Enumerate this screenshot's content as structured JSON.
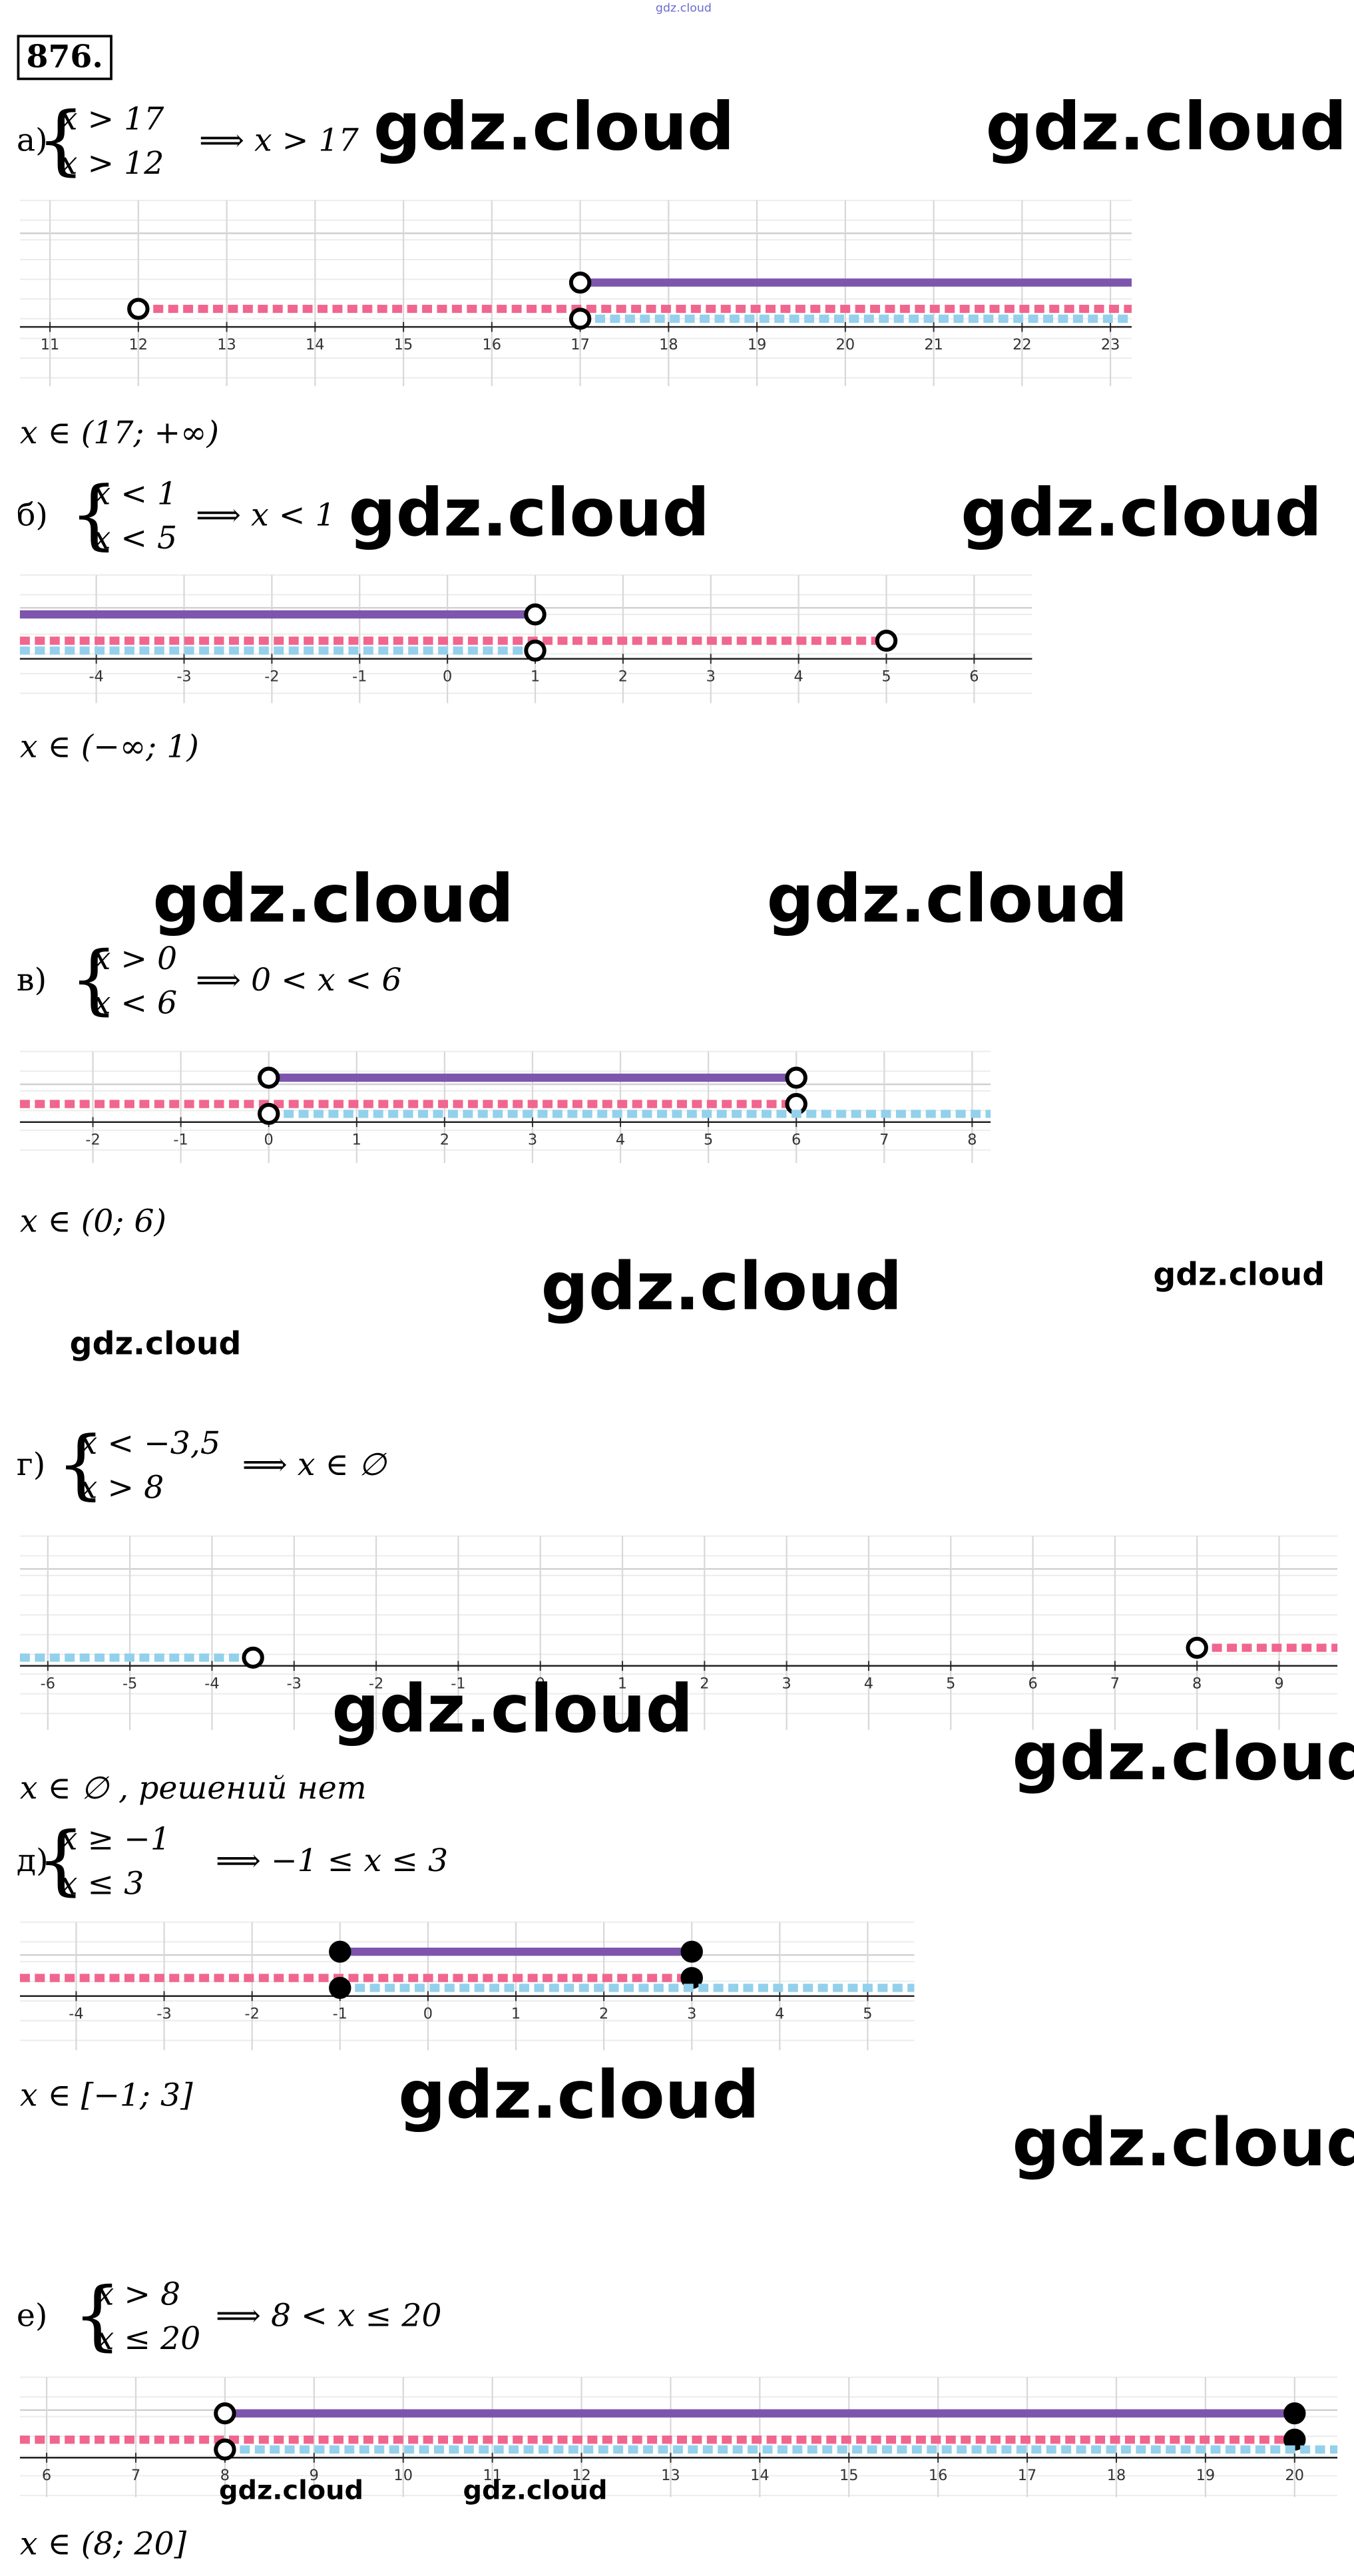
{
  "problem": "876.",
  "header_watermark": "gdz.cloud",
  "parts": [
    {
      "label": "а)",
      "system": [
        "x > 17",
        "x > 12"
      ],
      "result": "⟹ x > 17",
      "answer": "x ∈ (17; +∞)",
      "xlim": [
        10.66,
        23.24
      ],
      "xticks": [
        11,
        12,
        13,
        14,
        15,
        16,
        17,
        18,
        19,
        20,
        21,
        22,
        23
      ],
      "segments": [
        {
          "color": "#7d55ad",
          "style": "solid",
          "from": 17,
          "to": null,
          "from_point": "open",
          "to_point": null
        },
        {
          "color": "#f0668f",
          "style": "dashed",
          "from": 12,
          "to": null,
          "from_point": "open",
          "to_point": null
        },
        {
          "color": "#93d0ec",
          "style": "dashed",
          "from": 17,
          "to": null,
          "from_point": "open",
          "to_point": null
        }
      ]
    },
    {
      "label": "б)",
      "system": [
        "x < 1",
        "x < 5"
      ],
      "result": "⟹ x < 1",
      "answer": "x ∈ (−∞; 1)",
      "xlim": [
        -4.87,
        6.66
      ],
      "xticks": [
        -4,
        -3,
        -2,
        -1,
        0,
        1,
        2,
        3,
        4,
        5,
        6
      ],
      "segments": [
        {
          "color": "#7d55ad",
          "style": "solid",
          "from": null,
          "to": 1,
          "from_point": null,
          "to_point": "open"
        },
        {
          "color": "#f0668f",
          "style": "dashed",
          "from": null,
          "to": 5,
          "from_point": null,
          "to_point": "open"
        },
        {
          "color": "#93d0ec",
          "style": "dashed",
          "from": null,
          "to": 1,
          "from_point": null,
          "to_point": "open"
        }
      ]
    },
    {
      "label": "в)",
      "system": [
        "x > 0",
        "x < 6"
      ],
      "result": "⟹ 0 < x < 6",
      "answer": "x ∈ (0; 6)",
      "xlim": [
        -2.83,
        8.21
      ],
      "xticks": [
        -2,
        -1,
        0,
        1,
        2,
        3,
        4,
        5,
        6,
        7,
        8
      ],
      "segments": [
        {
          "color": "#7d55ad",
          "style": "solid",
          "from": 0,
          "to": 6,
          "from_point": "open",
          "to_point": "open"
        },
        {
          "color": "#f0668f",
          "style": "dashed",
          "from": null,
          "to": 6,
          "from_point": null,
          "to_point": "open"
        },
        {
          "color": "#93d0ec",
          "style": "dashed",
          "from": 0,
          "to": null,
          "from_point": "open",
          "to_point": null
        }
      ]
    },
    {
      "label": "г)",
      "system": [
        "x < −3,5",
        "x > 8"
      ],
      "result": "⟹ x ∈ ∅",
      "answer": "x ∈ ∅ , решений нет",
      "xlim": [
        -6.34,
        9.71
      ],
      "xticks": [
        -6,
        -5,
        -4,
        -3,
        -2,
        -1,
        0,
        1,
        2,
        3,
        4,
        5,
        6,
        7,
        8,
        9
      ],
      "segments": [
        null,
        {
          "color": "#f0668f",
          "style": "dashed",
          "from": 8,
          "to": null,
          "from_point": "open",
          "to_point": null
        },
        {
          "color": "#93d0ec",
          "style": "dashed",
          "from": null,
          "to": -3.5,
          "from_point": null,
          "to_point": "open"
        }
      ]
    },
    {
      "label": "д)",
      "system": [
        "x ≥ −1",
        "x ≤ 3"
      ],
      "result": "⟹ −1 ≤  x ≤ 3",
      "answer": "x ∈ [−1; 3]",
      "xlim": [
        -4.64,
        5.53
      ],
      "xticks": [
        -4,
        -3,
        -2,
        -1,
        0,
        1,
        2,
        3,
        4,
        5
      ],
      "segments": [
        {
          "color": "#7d55ad",
          "style": "solid",
          "from": -1,
          "to": 3,
          "from_point": "closed",
          "to_point": "closed"
        },
        {
          "color": "#f0668f",
          "style": "dashed",
          "from": null,
          "to": 3,
          "from_point": null,
          "to_point": "closed"
        },
        {
          "color": "#93d0ec",
          "style": "dashed",
          "from": -1,
          "to": null,
          "from_point": "closed",
          "to_point": null
        }
      ]
    },
    {
      "label": "е)",
      "system": [
        "x > 8",
        "x ≤ 20"
      ],
      "result": "⟹ 8 < x ≤ 20",
      "answer": "x ∈ (8; 20]",
      "xlim": [
        5.7,
        20.48
      ],
      "xticks": [
        6,
        7,
        8,
        9,
        10,
        11,
        12,
        13,
        14,
        15,
        16,
        17,
        18,
        19,
        20
      ],
      "segments": [
        {
          "color": "#7d55ad",
          "style": "solid",
          "from": 8,
          "to": 20,
          "from_point": "open",
          "to_point": "closed"
        },
        {
          "color": "#f0668f",
          "style": "dashed",
          "from": null,
          "to": 20,
          "from_point": null,
          "to_point": "closed"
        },
        {
          "color": "#93d0ec",
          "style": "dashed",
          "from": 8,
          "to": null,
          "from_point": "open",
          "to_point": null
        }
      ]
    }
  ],
  "watermarks": [
    "gdz.cloud",
    "gdz.cloud",
    "gdz.cloud",
    "gdz.cloud",
    "gdz.cloud",
    "gdz.cloud",
    "gdz.cloud",
    "gdz.cloud",
    "gdz.cloud",
    "gdz.cloud",
    "gdz.cloud",
    "gdz.cloud",
    "gdz.cloud",
    "gdz.cloud",
    "gdz.cloud",
    "gdz.cloud"
  ]
}
